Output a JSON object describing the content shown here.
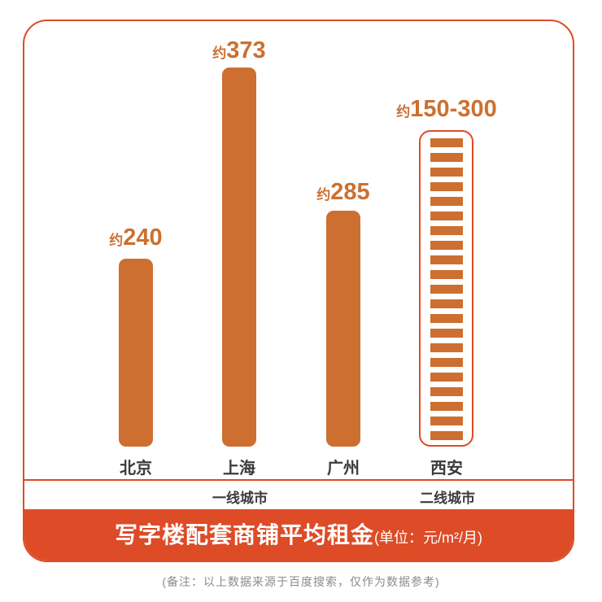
{
  "banner": {
    "title": "写字楼配套商铺平均租金",
    "unit": "(单位：元/m²/月)",
    "background": "#dd4b27",
    "text_color": "#ffffff"
  },
  "bars": [
    {
      "city": "北京",
      "prefix": "约",
      "value": "240",
      "group": "一线城市",
      "style": "solid"
    },
    {
      "city": "上海",
      "prefix": "约",
      "value": "373",
      "group": "一线城市",
      "style": "solid"
    },
    {
      "city": "广州",
      "prefix": "约",
      "value": "285",
      "group": "一线城市",
      "style": "solid"
    },
    {
      "city": "西安",
      "prefix": "约",
      "value": "150-300",
      "group": "二线城市",
      "style": "striped-outline"
    }
  ],
  "groups": [
    {
      "label": "一线城市"
    },
    {
      "label": "二线城市"
    }
  ],
  "footer": {
    "note": "(备注：以上数据来源于百度搜索，仅作为数据参考)"
  },
  "colors": {
    "bar": "#cd6f30",
    "accent": "#dd4b27",
    "city_label": "#3b3b3b",
    "note_text": "#8b8b8b"
  },
  "chart_data": {
    "type": "bar",
    "title": "写字楼配套商铺平均租金",
    "unit": "元/m²/月",
    "categories": [
      "北京",
      "上海",
      "广州",
      "西安"
    ],
    "values": [
      240,
      373,
      285,
      null
    ],
    "ranges": {
      "西安": [
        150,
        300
      ]
    },
    "value_labels": [
      "约240",
      "约373",
      "约285",
      "约150-300"
    ],
    "group_labels": {
      "一线城市": [
        "北京",
        "上海",
        "广州"
      ],
      "二线城市": [
        "西安"
      ]
    },
    "note": "(备注：以上数据来源于百度搜索，仅作为数据参考)",
    "bar_color": "#cd6f30",
    "accent_color": "#dd4b27",
    "legend_position": "none",
    "grid": false
  }
}
